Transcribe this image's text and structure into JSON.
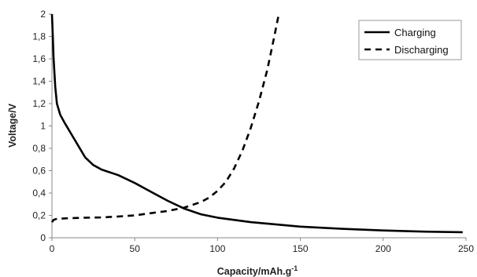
{
  "chart_data": {
    "type": "line",
    "title": "",
    "xlabel": "Capacity/mAh.g",
    "xlabel_superscript": "-1",
    "ylabel": "Voltage/V",
    "xlim": [
      0,
      250
    ],
    "ylim": [
      0,
      2
    ],
    "x_ticks": [
      0,
      50,
      100,
      150,
      200,
      250
    ],
    "y_ticks": [
      0,
      0.2,
      0.4,
      0.6,
      0.8,
      1,
      1.2,
      1.4,
      1.6,
      1.8,
      2
    ],
    "x_tick_labels": [
      "0",
      "50",
      "100",
      "150",
      "200",
      "250"
    ],
    "y_tick_labels": [
      "0",
      "0,2",
      "0,4",
      "0,6",
      "0,8",
      "1",
      "1,2",
      "1,4",
      "1,6",
      "1,8",
      "2"
    ],
    "grid": false,
    "legend_position": "top-right",
    "series": [
      {
        "name": "Charging",
        "style": "solid",
        "color": "#000000",
        "x": [
          0,
          0.5,
          1,
          2,
          3,
          5,
          8,
          12,
          16,
          20,
          25,
          30,
          40,
          50,
          60,
          70,
          80,
          90,
          100,
          120,
          150,
          175,
          200,
          225,
          248
        ],
        "y": [
          2.0,
          1.8,
          1.6,
          1.35,
          1.2,
          1.1,
          1.02,
          0.92,
          0.82,
          0.72,
          0.65,
          0.61,
          0.56,
          0.49,
          0.41,
          0.33,
          0.26,
          0.21,
          0.18,
          0.14,
          0.1,
          0.08,
          0.065,
          0.055,
          0.05
        ]
      },
      {
        "name": "Discharging",
        "style": "dashed",
        "color": "#000000",
        "x": [
          0,
          1,
          3,
          10,
          20,
          30,
          40,
          50,
          60,
          70,
          80,
          90,
          95,
          100,
          105,
          110,
          115,
          120,
          125,
          130,
          134,
          137
        ],
        "y": [
          0.14,
          0.16,
          0.17,
          0.175,
          0.18,
          0.182,
          0.19,
          0.2,
          0.22,
          0.24,
          0.27,
          0.32,
          0.36,
          0.42,
          0.5,
          0.62,
          0.78,
          0.98,
          1.22,
          1.5,
          1.78,
          2.0
        ]
      }
    ]
  }
}
